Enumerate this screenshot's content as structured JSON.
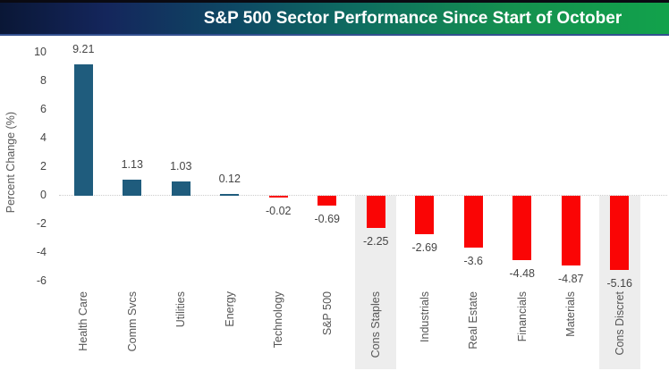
{
  "header": {
    "title": "S&P 500 Sector Performance Since Start of October",
    "gradient_colors": [
      "#14265C",
      "#0E6E60",
      "#12A24B"
    ],
    "title_color": "#FFFFFF"
  },
  "chart_data": {
    "type": "bar",
    "title": "S&P 500 Sector Performance Since Start of October",
    "xlabel": "",
    "ylabel": "Percent Change (%)",
    "categories": [
      "Health Care",
      "Comm Svcs",
      "Utilities",
      "Energy",
      "Technology",
      "S&P 500",
      "Cons Staples",
      "Industrials",
      "Real Estate",
      "Financials",
      "Materials",
      "Cons Discret"
    ],
    "values": [
      9.21,
      1.13,
      1.03,
      0.12,
      -0.02,
      -0.69,
      -2.25,
      -2.69,
      -3.6,
      -4.48,
      -4.87,
      -5.16
    ],
    "value_labels": [
      "9.21",
      "1.13",
      "1.03",
      "0.12",
      "-0.02",
      "-0.69",
      "-2.25",
      "-2.69",
      "-3.6",
      "-4.48",
      "-4.87",
      "-5.16"
    ],
    "ylim": [
      -6,
      10
    ],
    "yticks": [
      10,
      8,
      6,
      4,
      2,
      0,
      -2,
      -4,
      -6
    ],
    "grid": false,
    "zero_line_style": "dotted",
    "legend": "none",
    "highlighted_categories": [
      "Cons Staples",
      "Cons Discret"
    ],
    "colors": {
      "positive_bar": "#1F5C7D",
      "negative_bar": "#FA0505",
      "highlight_band": "#EDEDED",
      "value_text": "#454545",
      "axis_text": "#595959",
      "zero_line": "#CCCCCC"
    }
  }
}
